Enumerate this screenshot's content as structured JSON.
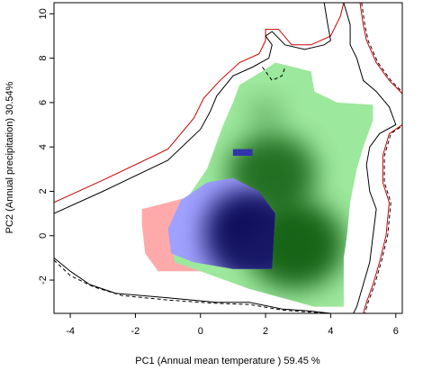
{
  "chart_data": {
    "type": "heatmap",
    "title": "",
    "xlabel": "PC1 (Annual mean temperature ) 59.45 %",
    "ylabel": "PC2 (Annual precipitation) 30.54%",
    "xlim": [
      -4.5,
      6.2
    ],
    "ylim": [
      -3.5,
      10.5
    ],
    "x_ticks": [
      -4,
      -2,
      0,
      2,
      4,
      6
    ],
    "y_ticks": [
      -2,
      0,
      2,
      4,
      6,
      8,
      10
    ],
    "grid": false,
    "colors": {
      "group_red": "#ffaaaa",
      "group_green": "#9ce89c",
      "group_green_dense": "#004d00",
      "group_blue": "#a0a0ff",
      "group_blue_dense": "#05054d",
      "outline_solid": "#000000",
      "outline_dashed": "#000000",
      "outline_red": "#cc0000"
    },
    "series": [
      {
        "group": "red",
        "polygon": [
          [
            -1.8,
            1.2
          ],
          [
            -0.2,
            1.8
          ],
          [
            0.5,
            1.5
          ],
          [
            0.6,
            -1.6
          ],
          [
            -1.3,
            -1.6
          ],
          [
            -1.7,
            -0.8
          ],
          [
            -1.8,
            0.5
          ]
        ],
        "peaks": []
      },
      {
        "group": "green",
        "polygon": [
          [
            1.2,
            6.8
          ],
          [
            2.0,
            7.5
          ],
          [
            2.3,
            7.8
          ],
          [
            3.4,
            7.4
          ],
          [
            3.5,
            6.5
          ],
          [
            4.2,
            6.0
          ],
          [
            5.3,
            5.9
          ],
          [
            5.3,
            5.2
          ],
          [
            5.0,
            4.0
          ],
          [
            4.8,
            3.0
          ],
          [
            4.6,
            1.5
          ],
          [
            4.5,
            0.0
          ],
          [
            4.4,
            -1.0
          ],
          [
            4.4,
            -3.2
          ],
          [
            3.5,
            -3.2
          ],
          [
            2.5,
            -2.8
          ],
          [
            1.5,
            -2.4
          ],
          [
            0.0,
            -1.6
          ],
          [
            -0.8,
            -1.2
          ],
          [
            -0.9,
            0.0
          ],
          [
            -0.5,
            1.5
          ],
          [
            0.2,
            3.0
          ],
          [
            0.7,
            5.0
          ],
          [
            1.0,
            6.0
          ]
        ],
        "peaks": [
          [
            2.2,
            2.8,
            0.9
          ],
          [
            2.9,
            -0.4,
            1.0
          ],
          [
            2.0,
            5.5,
            0.35
          ]
        ]
      },
      {
        "group": "blue",
        "polygon": [
          [
            -1.0,
            0.3
          ],
          [
            -0.6,
            1.6
          ],
          [
            0.2,
            2.4
          ],
          [
            1.0,
            2.6
          ],
          [
            1.8,
            2.0
          ],
          [
            2.3,
            1.0
          ],
          [
            2.2,
            -1.5
          ],
          [
            1.0,
            -1.5
          ],
          [
            -0.2,
            -1.2
          ],
          [
            -0.9,
            -0.8
          ]
        ],
        "peaks": [
          [
            1.8,
            -0.1,
            1.0
          ],
          [
            1.1,
            0.8,
            0.5
          ]
        ]
      }
    ],
    "extra_blobs": [
      {
        "group": "blue",
        "polygon": [
          [
            1.0,
            3.9
          ],
          [
            1.6,
            3.9
          ],
          [
            1.6,
            3.6
          ],
          [
            1.0,
            3.6
          ]
        ]
      }
    ],
    "outlines": {
      "solid": [
        [
          -4.5,
          1.0
        ],
        [
          -3.0,
          2.0
        ],
        [
          -1.0,
          3.4
        ],
        [
          0.0,
          4.8
        ],
        [
          0.3,
          5.6
        ],
        [
          0.5,
          6.3
        ],
        [
          1.0,
          7.2
        ],
        [
          1.6,
          7.6
        ],
        [
          2.1,
          8.0
        ],
        [
          2.2,
          8.6
        ],
        [
          2.0,
          9.0
        ],
        [
          2.2,
          9.2
        ],
        [
          2.6,
          8.6
        ],
        [
          3.2,
          8.4
        ],
        [
          3.8,
          8.6
        ],
        [
          4.0,
          8.8
        ],
        [
          3.9,
          9.6
        ],
        [
          3.8,
          10.5
        ]
      ],
      "solid_outer": [
        [
          -4.5,
          1.5
        ],
        [
          -3.0,
          2.5
        ],
        [
          -1.0,
          3.9
        ],
        [
          -0.2,
          5.3
        ],
        [
          0.1,
          6.2
        ],
        [
          0.6,
          7.0
        ],
        [
          1.2,
          7.8
        ],
        [
          1.8,
          8.2
        ],
        [
          2.0,
          8.8
        ],
        [
          2.0,
          9.3
        ],
        [
          2.4,
          9.3
        ],
        [
          2.8,
          8.6
        ],
        [
          3.4,
          8.6
        ],
        [
          4.0,
          9.0
        ],
        [
          4.3,
          9.9
        ],
        [
          4.4,
          10.5
        ]
      ],
      "dashed": [
        [
          1.9,
          7.6
        ],
        [
          2.2,
          7.0
        ],
        [
          2.5,
          7.2
        ],
        [
          2.6,
          7.6
        ]
      ],
      "right_solid": [
        [
          4.4,
          10.5
        ],
        [
          4.6,
          9.5
        ],
        [
          4.6,
          8.6
        ],
        [
          4.8,
          8.0
        ],
        [
          5.0,
          7.0
        ],
        [
          5.4,
          6.5
        ],
        [
          5.8,
          5.8
        ],
        [
          6.0,
          5.0
        ],
        [
          5.5,
          4.6
        ],
        [
          5.2,
          4.0
        ],
        [
          5.1,
          3.2
        ],
        [
          5.2,
          2.0
        ],
        [
          5.4,
          1.2
        ],
        [
          5.3,
          0.0
        ],
        [
          5.2,
          -1.2
        ],
        [
          5.0,
          -2.2
        ],
        [
          4.8,
          -3.2
        ],
        [
          4.7,
          -3.5
        ]
      ],
      "right_dashed": [
        [
          4.9,
          10.5
        ],
        [
          5.0,
          9.5
        ],
        [
          5.1,
          8.8
        ],
        [
          5.4,
          7.8
        ],
        [
          5.8,
          7.0
        ],
        [
          6.2,
          6.4
        ],
        [
          6.2,
          5.0
        ],
        [
          5.8,
          4.6
        ],
        [
          5.6,
          3.6
        ],
        [
          5.6,
          2.4
        ],
        [
          5.8,
          1.5
        ],
        [
          5.7,
          0.0
        ],
        [
          5.5,
          -1.2
        ],
        [
          5.3,
          -2.2
        ],
        [
          5.1,
          -3.0
        ],
        [
          5.0,
          -3.5
        ]
      ],
      "bottom_solid": [
        [
          -4.5,
          -1.0
        ],
        [
          -4.0,
          -1.6
        ],
        [
          -3.4,
          -2.2
        ],
        [
          -2.6,
          -2.6
        ],
        [
          -1.0,
          -2.8
        ],
        [
          0.5,
          -3.0
        ],
        [
          1.5,
          -3.0
        ],
        [
          2.5,
          -3.3
        ],
        [
          3.4,
          -3.4
        ],
        [
          4.0,
          -3.5
        ]
      ],
      "bottom_dashed": [
        [
          -4.5,
          -1.1
        ],
        [
          -4.0,
          -1.8
        ],
        [
          -3.3,
          -2.3
        ],
        [
          -2.4,
          -2.7
        ],
        [
          -1.0,
          -2.9
        ],
        [
          0.5,
          -3.05
        ],
        [
          1.5,
          -3.1
        ],
        [
          2.5,
          -3.35
        ],
        [
          3.4,
          -3.45
        ],
        [
          4.0,
          -3.5
        ]
      ]
    }
  }
}
